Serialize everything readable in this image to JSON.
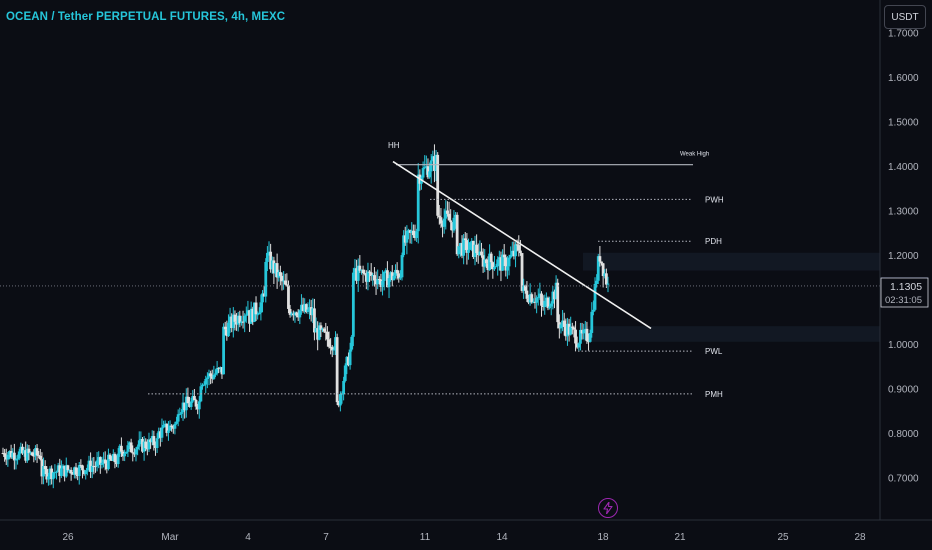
{
  "header": {
    "title": "OCEAN / Tether PERPETUAL FUTURES, 4h, MEXC",
    "currency_label": "USDT"
  },
  "colors": {
    "background": "#0b0d14",
    "bull": "#26c6da",
    "bear": "#e0e0e0",
    "level_line": "#b2b5be",
    "last_price_bg": "#2962ff",
    "title": "#26c6da",
    "alert_icon": "#9c27b0"
  },
  "price_scale": {
    "current_price_label": "1.1309",
    "crosshair_price_label": "1.1305",
    "countdown_label": "02:31:05"
  },
  "alert_icon": "lightning-bolt-icon",
  "chart_data": {
    "type": "candlestick",
    "title": "OCEAN / Tether PERPETUAL FUTURES, 4h, MEXC",
    "x_axis_labels": [
      "26",
      "Mar",
      "4",
      "7",
      "11",
      "14",
      "18",
      "21",
      "25",
      "28"
    ],
    "y_axis_labels": [
      "0.7000",
      "0.8000",
      "0.9000",
      "1.0000",
      "1.2000",
      "1.3000",
      "1.4000",
      "1.5000",
      "1.6000",
      "1.7000"
    ],
    "y_axis_ticks": [
      0.7,
      0.8,
      0.9,
      1.0,
      1.2,
      1.3,
      1.4,
      1.5,
      1.6,
      1.7
    ],
    "ylim": [
      0.6,
      1.72
    ],
    "last_price": 1.1309,
    "crosshair_price": 1.1305,
    "candle_period": "4h",
    "grid": false,
    "levels": [
      {
        "label": "Weak High",
        "value": 1.403
      },
      {
        "label": "PWH",
        "value": 1.325
      },
      {
        "label": "PDH",
        "value": 1.231
      },
      {
        "label": "PWL",
        "value": 0.984
      },
      {
        "label": "PMH",
        "value": 0.888
      }
    ],
    "annotations": [
      {
        "label": "HH",
        "value": 1.44
      }
    ],
    "trendline": {
      "start_value": 1.41,
      "end_value": 1.035
    },
    "anchors": [
      [
        0.755,
        0.75,
        24
      ],
      [
        0.71,
        0.72,
        24
      ],
      [
        0.72,
        0.74,
        24
      ],
      [
        0.76,
        0.78,
        24
      ],
      [
        0.8,
        0.82,
        12
      ],
      [
        0.86,
        0.87,
        14
      ],
      [
        0.92,
        0.94,
        14
      ],
      [
        1.03,
        1.08,
        16
      ],
      [
        1.06,
        1.1,
        10
      ],
      [
        1.2,
        1.12,
        14
      ],
      [
        1.08,
        1.07,
        16
      ],
      [
        1.03,
        1.0,
        14
      ],
      [
        0.86,
        1.0,
        10
      ],
      [
        1.16,
        1.15,
        16
      ],
      [
        1.14,
        1.16,
        14
      ],
      [
        1.22,
        1.26,
        10
      ],
      [
        1.38,
        1.41,
        12
      ],
      [
        1.29,
        1.27,
        12
      ],
      [
        1.22,
        1.21,
        14
      ],
      [
        1.19,
        1.18,
        16
      ],
      [
        1.18,
        1.22,
        10
      ],
      [
        1.12,
        1.1,
        12
      ],
      [
        1.08,
        1.12,
        10
      ],
      [
        1.05,
        1.02,
        12
      ],
      [
        1.01,
        1.02,
        8
      ],
      [
        1.04,
        1.18,
        6
      ],
      [
        1.2,
        1.13,
        6
      ]
    ]
  }
}
